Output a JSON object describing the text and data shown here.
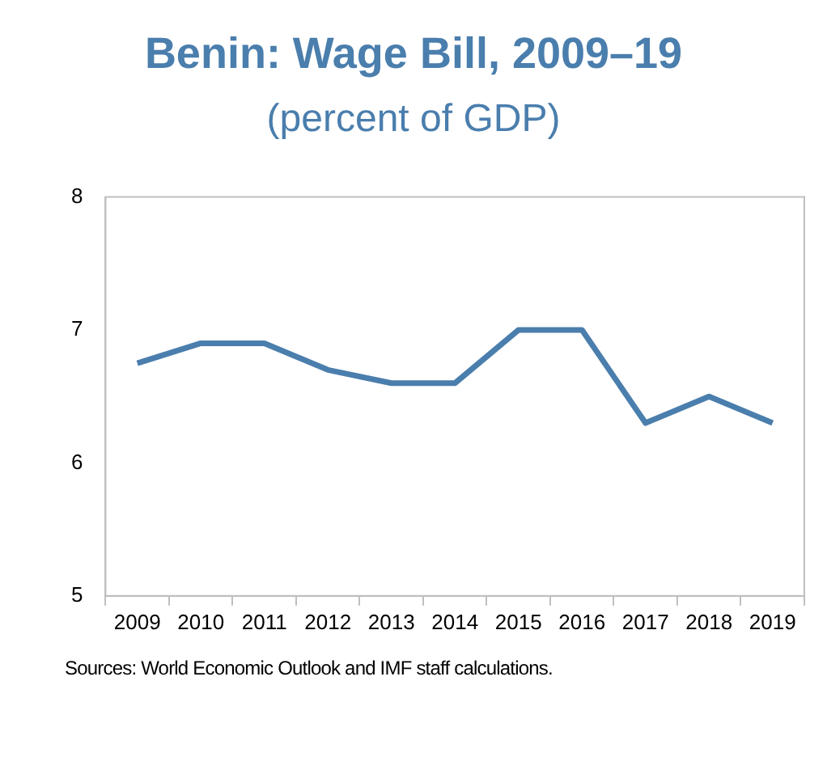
{
  "chart_data": {
    "type": "line",
    "title": "Benin: Wage Bill, 2009–19",
    "subtitle": "(percent of GDP)",
    "categories": [
      "2009",
      "2010",
      "2011",
      "2012",
      "2013",
      "2014",
      "2015",
      "2016",
      "2017",
      "2018",
      "2019"
    ],
    "series": [
      {
        "color": "#4a7ead",
        "values": [
          6.75,
          6.9,
          6.9,
          6.7,
          6.6,
          6.6,
          7.0,
          7.0,
          6.3,
          6.5,
          6.3
        ]
      }
    ],
    "ylim": [
      5,
      8
    ],
    "yticks": [
      5,
      6,
      7,
      8
    ],
    "grid": false,
    "legend": false,
    "marker": "none",
    "line_style": "solid",
    "annotations": [
      "Sources: World Economic Outlook and IMF staff calculations."
    ]
  }
}
